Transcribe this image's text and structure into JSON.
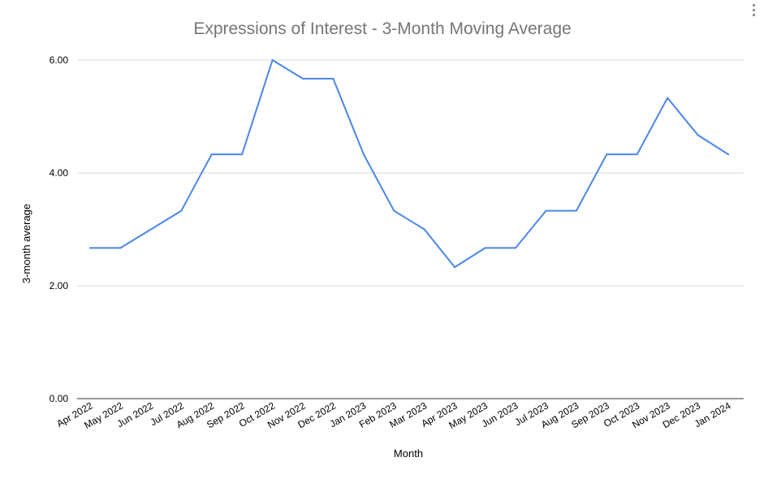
{
  "menu_icon": "more-vert-icon",
  "colors": {
    "line": "#4a86e8",
    "grid": "#d9d9d9",
    "title": "#757575",
    "text": "#000000"
  },
  "chart_data": {
    "type": "line",
    "title": "Expressions of Interest - 3-Month Moving Average",
    "xlabel": "Month",
    "ylabel": "3-month average",
    "ylim": [
      0,
      6
    ],
    "yticks": [
      "0.00",
      "2.00",
      "4.00",
      "6.00"
    ],
    "grid": true,
    "legend": "none",
    "categories": [
      "Apr 2022",
      "May 2022",
      "Jun 2022",
      "Jul 2022",
      "Aug 2022",
      "Sep 2022",
      "Oct 2022",
      "Nov 2022",
      "Dec 2022",
      "Jan 2023",
      "Feb 2023",
      "Mar 2023",
      "Apr 2023",
      "May 2023",
      "Jun 2023",
      "Jul 2023",
      "Aug 2023",
      "Sep 2023",
      "Oct 2023",
      "Nov 2023",
      "Dec 2023",
      "Jan 2024"
    ],
    "series": [
      {
        "values": [
          2.67,
          2.67,
          3.0,
          3.33,
          4.33,
          4.33,
          6.0,
          5.67,
          5.67,
          4.33,
          3.33,
          3.0,
          2.33,
          2.67,
          2.67,
          3.33,
          3.33,
          4.33,
          4.33,
          5.33,
          4.67,
          4.33
        ]
      }
    ]
  }
}
